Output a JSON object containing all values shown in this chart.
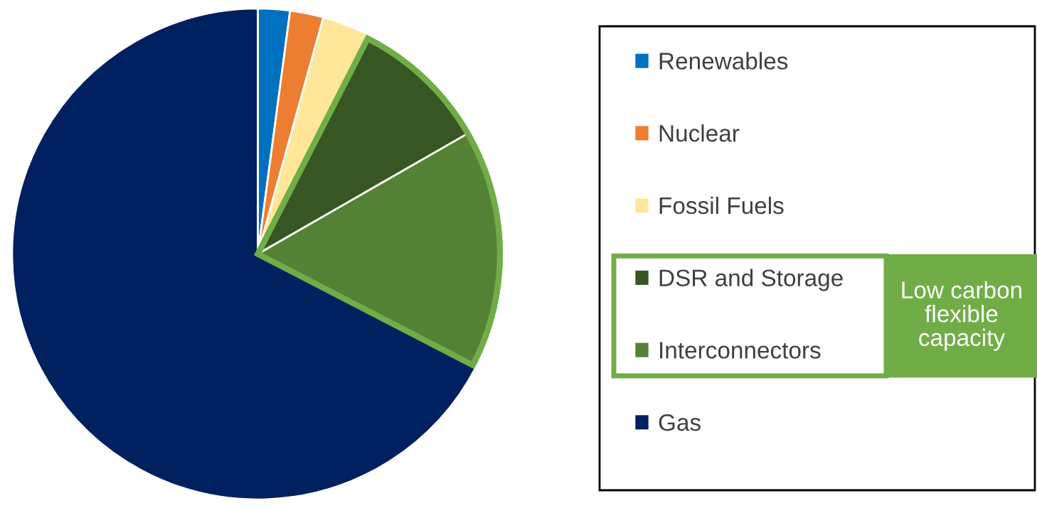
{
  "chart_data": {
    "type": "pie",
    "categories": [
      "Renewables",
      "Nuclear",
      "Fossil Fuels",
      "DSR and Storage",
      "Interconnectors",
      "Gas"
    ],
    "values": [
      2.1,
      2.2,
      3.2,
      9.2,
      15.9,
      67.4
    ],
    "colors": [
      "#0070c0",
      "#ed7d31",
      "#ffe699",
      "#375623",
      "#548235",
      "#002060"
    ],
    "legend": "right",
    "annotations": [
      "Low carbon flexible capacity"
    ]
  }
}
